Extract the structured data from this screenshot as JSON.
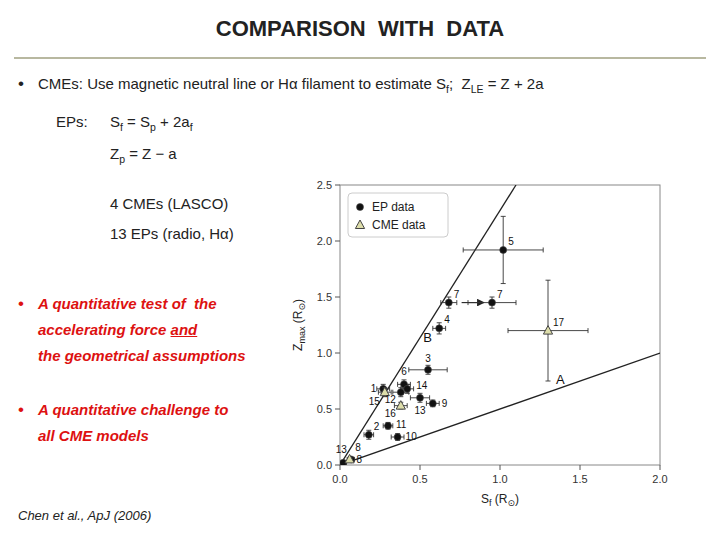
{
  "chart_data": {
    "type": "scatter",
    "title": "COMPARISON  WITH  DATA",
    "x_label": [
      {
        "text": "S"
      },
      {
        "text": "f",
        "sub": true
      },
      {
        "text": " (R"
      },
      {
        "text": "⊙",
        "sub": true
      },
      {
        "text": ")"
      }
    ],
    "y_label": [
      {
        "text": "Z"
      },
      {
        "text": "max",
        "sub": true
      },
      {
        "text": " (R"
      },
      {
        "text": "⊙",
        "sub": true
      },
      {
        "text": ")"
      }
    ],
    "xlim": [
      0.0,
      2.0
    ],
    "ylim": [
      0.0,
      2.5
    ],
    "xticks": [
      {
        "value": 0,
        "label": "0.0"
      },
      0.5,
      {
        "value": 1,
        "label": "1.0"
      },
      1.5,
      {
        "value": 2,
        "label": "2.0"
      }
    ],
    "yticks": [
      {
        "value": 0,
        "label": "0.0"
      },
      0.5,
      {
        "value": 1,
        "label": "1.0"
      },
      1.5,
      {
        "value": 2,
        "label": "2.0"
      },
      2.5
    ],
    "grid": false,
    "legend": "upper left",
    "series": [
      {
        "name": "EP data",
        "color": "#111111",
        "marker": "circle",
        "x": [
          0.02,
          0.07,
          0.18,
          0.27,
          0.3,
          0.36,
          0.38,
          0.4,
          0.42,
          0.5,
          0.55,
          0.58,
          0.62,
          0.68,
          0.95,
          1.02
        ],
        "values": [
          0.02,
          0.05,
          0.27,
          0.68,
          0.35,
          0.25,
          0.65,
          0.72,
          0.68,
          0.6,
          0.85,
          0.55,
          1.22,
          1.45,
          1.45,
          1.92
        ],
        "xerr": [
          0.02,
          0.02,
          0.03,
          0.04,
          0.03,
          0.04,
          0.05,
          0.04,
          0.04,
          0.06,
          0.12,
          0.04,
          0.04,
          0.05,
          0.15,
          0.25
        ],
        "yerr": [
          0.01,
          0.01,
          0.04,
          0.04,
          0.03,
          0.03,
          0.04,
          0.04,
          0.04,
          0.04,
          0.04,
          0.03,
          0.05,
          0.05,
          0.05,
          0.3
        ],
        "point_labels": [
          "13",
          "8",
          "2",
          "1",
          "11",
          "10",
          "12",
          "6",
          "14",
          "13",
          "3",
          "9",
          "4",
          "7",
          "7",
          "5"
        ]
      },
      {
        "name": "CME data",
        "color": "#DDDDAA",
        "marker": "triangle",
        "x": [
          0.06,
          0.28,
          0.38,
          1.3
        ],
        "values": [
          0.05,
          0.65,
          0.53,
          1.2
        ],
        "xerr": [
          0.015,
          0.04,
          0.04,
          0.25
        ],
        "yerr": [
          0.01,
          0.04,
          0.03,
          0.45
        ],
        "point_labels": [
          "8",
          "15",
          "16",
          "17"
        ]
      }
    ],
    "reference_lines": [
      {
        "label": "A",
        "x": [
          0.0,
          2.0
        ],
        "values": [
          0.0,
          1.0
        ],
        "label_x": 1.35,
        "label_y": 0.72
      },
      {
        "label": "B",
        "x": [
          0.0,
          1.1
        ],
        "values": [
          0.0,
          2.5
        ],
        "label_x": 0.52,
        "label_y": 1.1
      }
    ],
    "arrows": [
      {
        "x": [
          0.76,
          0.9
        ],
        "values": [
          1.45,
          1.45
        ]
      }
    ],
    "annotations": [
      {
        "bullet": "•",
        "parts": [
          {
            "text": "CMEs: Use magnetic neutral line or H"
          },
          {
            "text": "α"
          },
          {
            "text": " filament to estimate "
          },
          {
            "text": "S"
          },
          {
            "text": "f",
            "sub": true
          },
          {
            "text": ";  Z"
          },
          {
            "text": "LE",
            "sub": true
          },
          {
            "text": " = Z + 2"
          },
          {
            "text": "a"
          }
        ]
      },
      {
        "parts": [
          {
            "text": "EPs:"
          }
        ]
      },
      {
        "parts": [
          {
            "text": "S"
          },
          {
            "text": "f",
            "sub": true
          },
          {
            "text": " = S"
          },
          {
            "text": "p",
            "sub": true
          },
          {
            "text": " + 2a"
          },
          {
            "text": "f",
            "sub": true
          }
        ]
      },
      {
        "parts": [
          {
            "text": "Z"
          },
          {
            "text": "p",
            "sub": true
          },
          {
            "text": " = Z − a"
          }
        ]
      },
      {
        "parts": [
          {
            "text": "4 CMEs (LASCO)"
          }
        ]
      },
      {
        "parts": [
          {
            "text": "13 EPs (radio, Hα)"
          }
        ]
      },
      {
        "bullet": "•",
        "color": "#DD1111",
        "parts": [
          {
            "text": "A quantitative test of  the"
          }
        ]
      },
      {
        "color": "#DD1111",
        "parts": [
          {
            "text": "accelerating force "
          },
          {
            "text": "and",
            "underline": true
          }
        ]
      },
      {
        "color": "#DD1111",
        "parts": [
          {
            "text": "the geometrical assumptions"
          }
        ]
      },
      {
        "bullet": "•",
        "color": "#DD1111",
        "parts": [
          {
            "text": "A quantitative challenge to"
          }
        ]
      },
      {
        "color": "#DD1111",
        "parts": [
          {
            "text": "all CME models"
          }
        ]
      },
      {
        "parts": [
          {
            "text": "Chen et al., ApJ (2006)"
          }
        ]
      }
    ]
  }
}
